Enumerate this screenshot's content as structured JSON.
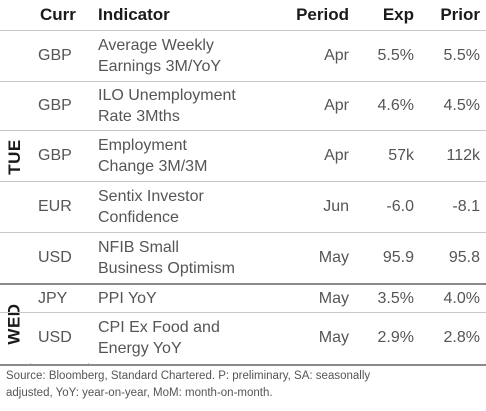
{
  "header": {
    "curr": "Curr",
    "indicator": "Indicator",
    "period": "Period",
    "exp": "Exp",
    "prior": "Prior"
  },
  "days": [
    {
      "label": "TUE"
    },
    {
      "label": "WED"
    }
  ],
  "rows": [
    {
      "curr": "GBP",
      "indicator_line1": "Average Weekly",
      "indicator_line2": "Earnings 3M/YoY",
      "period": "Apr",
      "exp": "5.5%",
      "prior": "5.5%"
    },
    {
      "curr": "GBP",
      "indicator_line1": "ILO Unemployment",
      "indicator_line2": "Rate 3Mths",
      "period": "Apr",
      "exp": "4.6%",
      "prior": "4.5%"
    },
    {
      "curr": "GBP",
      "indicator_line1": "Employment",
      "indicator_line2": "Change 3M/3M",
      "period": "Apr",
      "exp": "57k",
      "prior": "112k"
    },
    {
      "curr": "EUR",
      "indicator_line1": "Sentix Investor",
      "indicator_line2": "Confidence",
      "period": "Jun",
      "exp": "-6.0",
      "prior": "-8.1"
    },
    {
      "curr": "USD",
      "indicator_line1": "NFIB Small",
      "indicator_line2": "Business Optimism",
      "period": "May",
      "exp": "95.9",
      "prior": "95.8"
    },
    {
      "curr": "JPY",
      "indicator_line1": "PPI YoY",
      "indicator_line2": "",
      "period": "May",
      "exp": "3.5%",
      "prior": "4.0%"
    },
    {
      "curr": "USD",
      "indicator_line1": "CPI Ex Food and",
      "indicator_line2": "Energy YoY",
      "period": "May",
      "exp": "2.9%",
      "prior": "2.8%"
    }
  ],
  "footer": {
    "line1": "Source: Bloomberg, Standard Chartered. P: preliminary, SA: seasonally",
    "line2": "adjusted, YoY: year-on-year, MoM: month-on-month."
  }
}
